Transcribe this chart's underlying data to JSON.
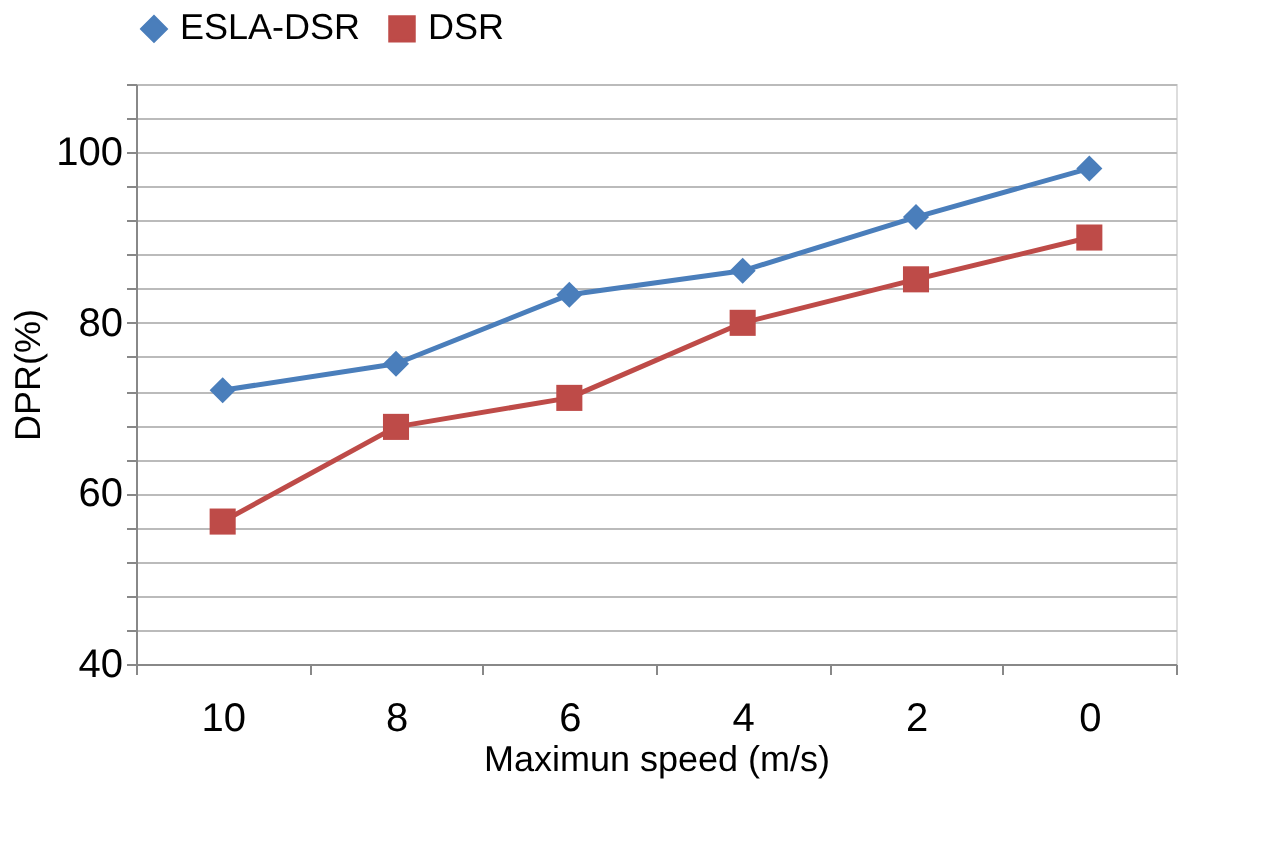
{
  "chart_data": {
    "type": "line",
    "xlabel": "Maximun speed (m/s)",
    "ylabel": "DPR(%)",
    "categories": [
      "10",
      "8",
      "6",
      "4",
      "2",
      "0"
    ],
    "series": [
      {
        "name": "ESLA-DSR",
        "color": "#4a7ebb",
        "marker": "diamond",
        "values": [
          72.1,
          75.2,
          83.3,
          86.1,
          92.4,
          98.1
        ]
      },
      {
        "name": "DSR",
        "color": "#be4b48",
        "marker": "square",
        "values": [
          56.7,
          67.8,
          71.2,
          80.0,
          85.1,
          90.0
        ]
      }
    ],
    "ylim": [
      40,
      108
    ],
    "yticks": [
      40,
      {
        "value": 44,
        "label": null
      },
      {
        "value": 48,
        "label": null
      },
      {
        "value": 52,
        "label": null
      },
      {
        "value": 56,
        "label": null
      },
      60,
      {
        "value": 64,
        "label": null
      },
      {
        "value": 68,
        "label": null
      },
      {
        "value": 72,
        "label": null
      },
      {
        "value": 76,
        "label": null
      },
      80,
      {
        "value": 84,
        "label": null
      },
      {
        "value": 88,
        "label": null
      },
      {
        "value": 92,
        "label": null
      },
      {
        "value": 96,
        "label": null
      },
      100,
      {
        "value": 104,
        "label": null
      },
      {
        "value": 108,
        "label": null
      }
    ],
    "grid": "y",
    "legend": "top",
    "line_style": "solid"
  }
}
